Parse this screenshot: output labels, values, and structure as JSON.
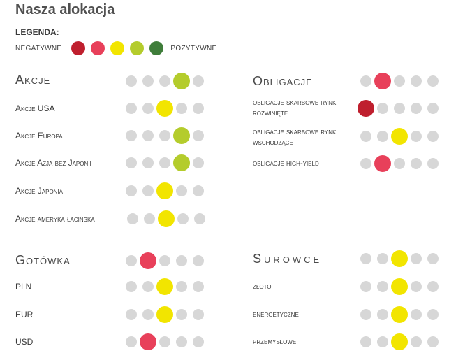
{
  "title": "Nasza alokacja",
  "legend": {
    "heading": "LEGENDA:",
    "negative_label": "NEGATYWNE",
    "positive_label": "POZYTYWNE",
    "colors": [
      "#bf1f2e",
      "#e8405a",
      "#f2e500",
      "#b4cc2c",
      "#3f7d3a"
    ]
  },
  "inactive_color": "#d7d7d7",
  "scale_levels": 5,
  "sections": {
    "akcje": {
      "title": "Akcje",
      "level": 4,
      "rows": [
        {
          "label": "Akcje USA",
          "level": 3
        },
        {
          "label": "Akcje Europa",
          "level": 4
        },
        {
          "label": "Akcje Azja bez Japonii",
          "level": 4
        },
        {
          "label": "Akcje Japonia",
          "level": 3
        },
        {
          "label": "Akcje ameryka łacińska",
          "level": 3
        }
      ]
    },
    "obligacje": {
      "title": "Obligacje",
      "level": 2,
      "rows": [
        {
          "label": "obligacje skarbowe rynki rozwinięte",
          "level": 1
        },
        {
          "label": "obligacje skarbowe rynki wschodzące",
          "level": 3
        },
        {
          "label": "obligacje high-yield",
          "level": 2
        }
      ]
    },
    "gotowka": {
      "title": "Gotówka",
      "level": 2,
      "rows": [
        {
          "label": "PLN",
          "level": 3
        },
        {
          "label": "EUR",
          "level": 3
        },
        {
          "label": "USD",
          "level": 2
        }
      ]
    },
    "surowce": {
      "title": "Surowce",
      "level": 3,
      "rows": [
        {
          "label": "złoto",
          "level": 3
        },
        {
          "label": "energetyczne",
          "level": 3
        },
        {
          "label": "przemysłowe",
          "level": 3
        }
      ]
    }
  }
}
